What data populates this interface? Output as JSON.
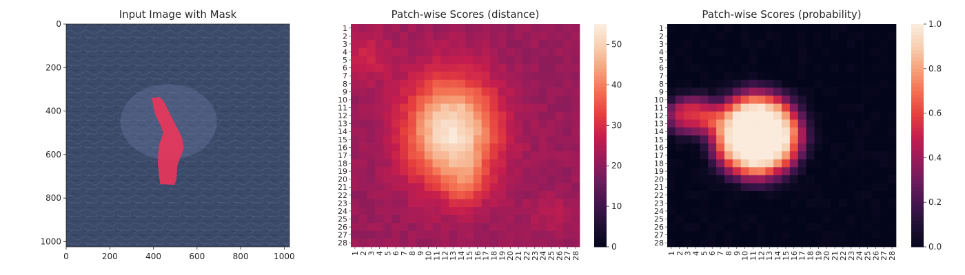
{
  "chart_data": [
    {
      "type": "image",
      "title": "Input Image with Mask",
      "xlim": [
        0,
        1024
      ],
      "ylim": [
        1024,
        0
      ],
      "xticks": [
        0,
        200,
        400,
        600,
        800,
        1000
      ],
      "yticks": [
        0,
        200,
        400,
        600,
        800,
        1000
      ],
      "colors": {
        "background": "#3c4a6a",
        "mask": "#f0345a"
      },
      "mask_polygon": [
        [
          390,
          340
        ],
        [
          430,
          335
        ],
        [
          450,
          360
        ],
        [
          470,
          400
        ],
        [
          490,
          440
        ],
        [
          530,
          520
        ],
        [
          540,
          570
        ],
        [
          520,
          620
        ],
        [
          510,
          650
        ],
        [
          505,
          720
        ],
        [
          495,
          740
        ],
        [
          430,
          735
        ],
        [
          420,
          640
        ],
        [
          425,
          560
        ],
        [
          445,
          500
        ],
        [
          430,
          460
        ],
        [
          410,
          420
        ],
        [
          400,
          380
        ],
        [
          395,
          350
        ]
      ]
    },
    {
      "type": "heatmap",
      "title": "Patch-wise Scores (distance)",
      "rows": 28,
      "cols": 28,
      "colorbar": {
        "vmin": 0,
        "vmax": 55,
        "ticks": [
          0,
          10,
          20,
          30,
          40,
          50
        ]
      },
      "colors": {
        "low": "#03051a",
        "mid": "#cb1b4f",
        "high": "#faebdd"
      },
      "background_level": 22,
      "blobs": [
        {
          "row": 14,
          "col": 12.8,
          "sigma_r": 4.8,
          "sigma_c": 3.8,
          "peak": 32
        },
        {
          "row": 20.5,
          "col": 14.5,
          "sigma_r": 2.2,
          "sigma_c": 1.6,
          "peak": 8
        },
        {
          "row": 4.5,
          "col": 2.5,
          "sigma_r": 2.5,
          "sigma_c": 2.5,
          "peak": 6
        },
        {
          "row": 24.5,
          "col": 25,
          "sigma_r": 1.5,
          "sigma_c": 2.0,
          "peak": 4
        }
      ]
    },
    {
      "type": "heatmap",
      "title": "Patch-wise Scores (probability)",
      "rows": 28,
      "cols": 28,
      "colorbar": {
        "vmin": 0.0,
        "vmax": 1.0,
        "ticks": [
          "0.0",
          "0.2",
          "0.4",
          "0.6",
          "0.8",
          "1.0"
        ]
      },
      "colors": {
        "low": "#03051a",
        "mid": "#cb1b4f",
        "high": "#faebdd"
      },
      "background_level": 0.0,
      "blobs": [
        {
          "row": 14.5,
          "col": 11.5,
          "sigma_r": 4.6,
          "sigma_c": 4.6,
          "peak": 1.15,
          "exponent": 4
        },
        {
          "row": 12,
          "col": 3.5,
          "sigma_r": 2.0,
          "sigma_c": 2.6,
          "peak": 0.55,
          "exponent": 3
        }
      ]
    }
  ]
}
